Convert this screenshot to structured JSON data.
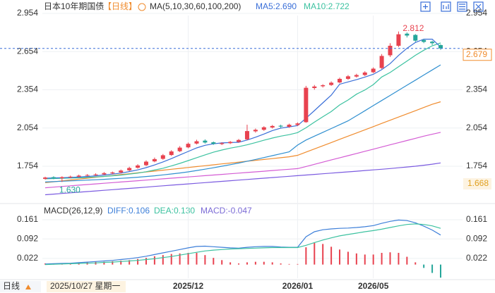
{
  "chart_data": [
    {
      "type": "candlestick",
      "title": "日本10年期国债",
      "period_label": "【日线】",
      "ma_label": "MA(5,10,30,60,100,200)",
      "categories": [
        null,
        null,
        null,
        null,
        null,
        null,
        null,
        null,
        null,
        null,
        null,
        null,
        null,
        null,
        null,
        null,
        null,
        "2025/12",
        null,
        null,
        null,
        null,
        null,
        null,
        null,
        null,
        null,
        null,
        null,
        null,
        "2026/01",
        null,
        null,
        null,
        null,
        null,
        null,
        null,
        null,
        "2026/05",
        null,
        null,
        null,
        null,
        null,
        null,
        null,
        null
      ],
      "open": [
        1.655,
        1.668,
        1.66,
        1.666,
        1.672,
        1.68,
        1.684,
        1.69,
        1.698,
        1.705,
        1.722,
        1.742,
        1.762,
        1.792,
        1.812,
        1.842,
        1.872,
        1.902,
        1.932,
        1.955,
        1.942,
        1.928,
        1.935,
        1.945,
        1.965,
        2.028,
        2.04,
        2.058,
        2.072,
        2.064,
        2.078,
        2.1,
        2.368,
        2.382,
        2.392,
        2.412,
        2.44,
        2.458,
        2.47,
        2.492,
        2.525,
        2.625,
        2.7,
        2.795,
        2.785,
        2.745,
        2.732,
        2.705
      ],
      "high": [
        1.672,
        1.675,
        1.675,
        1.68,
        1.688,
        1.692,
        1.698,
        1.708,
        1.712,
        1.728,
        1.75,
        1.77,
        1.8,
        1.822,
        1.85,
        1.88,
        1.912,
        1.94,
        1.962,
        1.965,
        1.948,
        1.942,
        1.952,
        1.968,
        2.08,
        2.05,
        2.068,
        2.078,
        2.08,
        2.088,
        2.098,
        2.385,
        2.392,
        2.398,
        2.42,
        2.45,
        2.47,
        2.48,
        2.5,
        2.53,
        2.635,
        2.72,
        2.812,
        2.805,
        2.792,
        2.752,
        2.74,
        2.712
      ],
      "low": [
        1.648,
        1.652,
        1.63,
        1.66,
        1.666,
        1.674,
        1.678,
        1.684,
        1.692,
        1.698,
        1.715,
        1.735,
        1.755,
        1.785,
        1.805,
        1.835,
        1.865,
        1.895,
        1.925,
        1.932,
        1.922,
        1.92,
        1.928,
        1.938,
        1.958,
        2.018,
        2.032,
        2.05,
        2.055,
        2.056,
        2.07,
        2.095,
        2.355,
        2.372,
        2.385,
        2.405,
        2.432,
        2.45,
        2.462,
        2.485,
        2.518,
        2.612,
        2.69,
        2.765,
        2.73,
        2.72,
        2.705,
        2.668
      ],
      "close": [
        1.665,
        1.66,
        1.668,
        1.672,
        1.68,
        1.685,
        1.69,
        1.7,
        1.705,
        1.72,
        1.74,
        1.76,
        1.79,
        1.81,
        1.84,
        1.87,
        1.9,
        1.93,
        1.95,
        1.94,
        1.93,
        1.935,
        1.945,
        1.96,
        2.03,
        2.04,
        2.06,
        2.07,
        2.065,
        2.08,
        2.09,
        2.37,
        2.38,
        2.39,
        2.41,
        2.44,
        2.46,
        2.47,
        2.49,
        2.52,
        2.62,
        2.7,
        2.79,
        2.78,
        2.74,
        2.73,
        2.72,
        2.679
      ],
      "up_color": "#e8424f",
      "down_color": "#26a69a",
      "series": [
        {
          "name": "MA5:2.690",
          "color": "#3a6fd8",
          "values": [
            1.66,
            1.662,
            1.664,
            1.666,
            1.669,
            1.673,
            1.679,
            1.685,
            1.692,
            1.7,
            1.712,
            1.725,
            1.743,
            1.764,
            1.788,
            1.814,
            1.842,
            1.87,
            1.898,
            1.918,
            1.93,
            1.937,
            1.94,
            1.942,
            1.96,
            1.982,
            2.007,
            2.034,
            2.053,
            2.063,
            2.073,
            2.131,
            2.191,
            2.252,
            2.312,
            2.398,
            2.416,
            2.434,
            2.454,
            2.476,
            2.512,
            2.56,
            2.624,
            2.68,
            2.726,
            2.752,
            2.752,
            2.69
          ]
        },
        {
          "name": "MA10:2.722",
          "color": "#3cc2a0",
          "values": [
            1.655,
            1.657,
            1.659,
            1.661,
            1.663,
            1.666,
            1.67,
            1.674,
            1.679,
            1.684,
            1.692,
            1.7,
            1.711,
            1.724,
            1.738,
            1.756,
            1.776,
            1.798,
            1.821,
            1.843,
            1.864,
            1.881,
            1.896,
            1.908,
            1.922,
            1.94,
            1.958,
            1.975,
            1.99,
            2.002,
            2.018,
            2.056,
            2.1,
            2.143,
            2.183,
            2.235,
            2.274,
            2.32,
            2.353,
            2.395,
            2.455,
            2.49,
            2.535,
            2.58,
            2.625,
            2.665,
            2.7,
            2.722
          ]
        },
        {
          "color": "#2f8fd0",
          "values": [
            1.63,
            1.633,
            1.636,
            1.639,
            1.642,
            1.645,
            1.648,
            1.651,
            1.655,
            1.659,
            1.663,
            1.668,
            1.673,
            1.679,
            1.686,
            1.693,
            1.701,
            1.71,
            1.72,
            1.731,
            1.742,
            1.754,
            1.766,
            1.779,
            1.793,
            1.807,
            1.822,
            1.837,
            1.852,
            1.867,
            1.92,
            1.96,
            1.99,
            2.02,
            2.05,
            2.08,
            2.11,
            2.15,
            2.19,
            2.23,
            2.27,
            2.31,
            2.35,
            2.39,
            2.43,
            2.47,
            2.51,
            2.55
          ]
        },
        {
          "color": "#f08c2e",
          "values": [
            1.625,
            1.632,
            1.639,
            1.646,
            1.653,
            1.66,
            1.667,
            1.674,
            1.681,
            1.688,
            1.695,
            1.702,
            1.709,
            1.716,
            1.723,
            1.73,
            1.737,
            1.744,
            1.751,
            1.758,
            1.765,
            1.772,
            1.779,
            1.786,
            1.793,
            1.8,
            1.807,
            1.814,
            1.821,
            1.828,
            1.84,
            1.865,
            1.89,
            1.915,
            1.94,
            1.965,
            1.99,
            2.015,
            2.04,
            2.065,
            2.09,
            2.115,
            2.14,
            2.165,
            2.19,
            2.215,
            2.24,
            2.26
          ]
        },
        {
          "color": "#d45cd4",
          "values": [
            1.585,
            1.59,
            1.595,
            1.6,
            1.605,
            1.61,
            1.615,
            1.62,
            1.625,
            1.63,
            1.635,
            1.64,
            1.645,
            1.65,
            1.655,
            1.66,
            1.665,
            1.67,
            1.675,
            1.68,
            1.685,
            1.69,
            1.695,
            1.7,
            1.705,
            1.71,
            1.715,
            1.72,
            1.725,
            1.73,
            1.735,
            1.752,
            1.769,
            1.786,
            1.803,
            1.82,
            1.837,
            1.854,
            1.871,
            1.888,
            1.905,
            1.922,
            1.939,
            1.956,
            1.973,
            1.99,
            2.005,
            2.02
          ]
        },
        {
          "color": "#7b5be0",
          "values": [
            1.53,
            1.535,
            1.54,
            1.545,
            1.55,
            1.555,
            1.56,
            1.565,
            1.57,
            1.575,
            1.58,
            1.585,
            1.59,
            1.595,
            1.6,
            1.605,
            1.61,
            1.615,
            1.62,
            1.625,
            1.63,
            1.635,
            1.64,
            1.645,
            1.65,
            1.655,
            1.66,
            1.665,
            1.67,
            1.675,
            1.68,
            1.685,
            1.69,
            1.695,
            1.7,
            1.705,
            1.71,
            1.715,
            1.72,
            1.725,
            1.73,
            1.736,
            1.742,
            1.748,
            1.754,
            1.762,
            1.77,
            1.78
          ]
        }
      ],
      "ylim": [
        1.483,
        3.015
      ],
      "yticks": [
        2.954,
        2.654,
        2.354,
        2.054,
        1.754
      ],
      "grid": true,
      "high_label": "2.812",
      "low_label": "1.630",
      "last_price": {
        "value": 2.679,
        "label": "2.679"
      },
      "side_label": "1.668",
      "cursor_date": "2025/10/27 星期一",
      "period_button": "日线"
    },
    {
      "type": "macd",
      "title": "MACD(26,12,9)",
      "series": [
        {
          "name": "DIFF:0.106",
          "type": "line",
          "color": "#3d7fd9",
          "values": [
            0.002,
            0.003,
            0.004,
            0.005,
            0.007,
            0.009,
            0.011,
            0.013,
            0.015,
            0.018,
            0.021,
            0.025,
            0.03,
            0.036,
            0.042,
            0.048,
            0.054,
            0.06,
            0.065,
            0.066,
            0.064,
            0.062,
            0.06,
            0.059,
            0.062,
            0.064,
            0.065,
            0.065,
            0.063,
            0.062,
            0.062,
            0.1,
            0.118,
            0.125,
            0.128,
            0.13,
            0.131,
            0.133,
            0.136,
            0.14,
            0.148,
            0.155,
            0.16,
            0.158,
            0.15,
            0.138,
            0.124,
            0.106
          ]
        },
        {
          "name": "DEA:0.130",
          "type": "line",
          "color": "#3cc2a0",
          "values": [
            0.0,
            0.001,
            0.002,
            0.003,
            0.004,
            0.005,
            0.006,
            0.008,
            0.009,
            0.011,
            0.013,
            0.015,
            0.018,
            0.021,
            0.025,
            0.029,
            0.034,
            0.039,
            0.044,
            0.049,
            0.052,
            0.054,
            0.056,
            0.057,
            0.058,
            0.059,
            0.06,
            0.061,
            0.061,
            0.061,
            0.061,
            0.069,
            0.079,
            0.088,
            0.096,
            0.103,
            0.108,
            0.113,
            0.118,
            0.122,
            0.127,
            0.133,
            0.139,
            0.144,
            0.146,
            0.144,
            0.139,
            0.13
          ]
        },
        {
          "name": "MACD:-0.047",
          "type": "bar",
          "color": "#7b6bd6",
          "up_color": "#e8424f",
          "down_color": "#26a69a",
          "values": [
            0.004,
            0.004,
            0.004,
            0.004,
            0.006,
            0.008,
            0.01,
            0.01,
            0.012,
            0.014,
            0.016,
            0.02,
            0.024,
            0.03,
            0.034,
            0.038,
            0.04,
            0.042,
            0.042,
            0.034,
            0.024,
            0.016,
            0.008,
            0.004,
            0.008,
            0.01,
            0.01,
            0.008,
            0.004,
            0.002,
            0.002,
            0.062,
            0.078,
            0.074,
            0.064,
            0.054,
            0.046,
            0.04,
            0.036,
            0.036,
            0.042,
            0.044,
            0.042,
            0.028,
            0.008,
            -0.012,
            -0.03,
            -0.047
          ]
        }
      ],
      "ylim": [
        -0.049,
        0.209
      ],
      "yticks": [
        0.161,
        0.092,
        0.022
      ],
      "grid": true
    }
  ]
}
